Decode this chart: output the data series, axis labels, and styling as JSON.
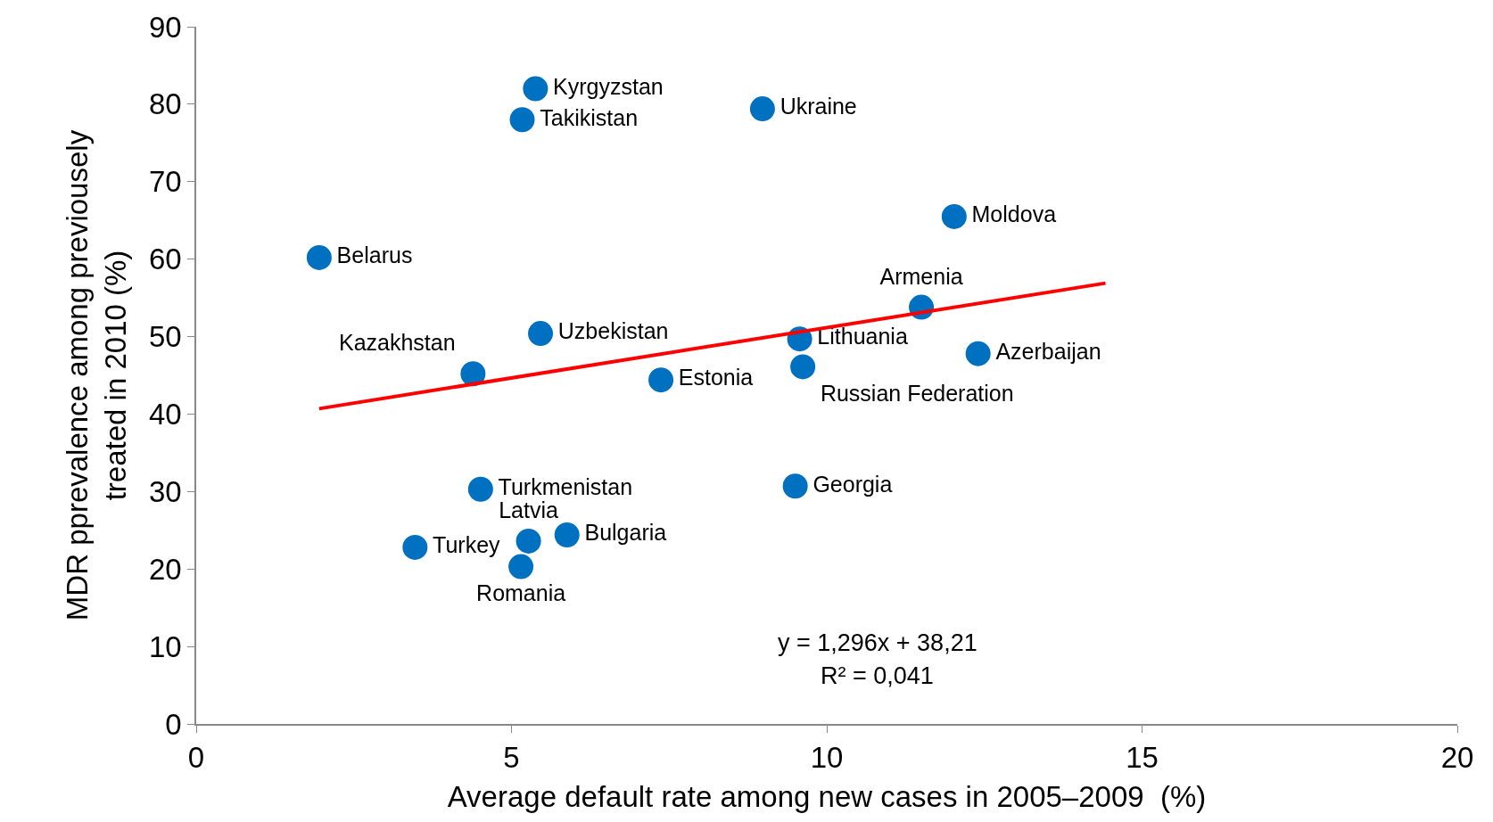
{
  "chart_data": {
    "type": "scatter",
    "xlabel": "Average default rate among new cases in 2005–2009  (%)",
    "ylabel": "MDR pprevalence among previousely treated in 2010 (%)",
    "xlim": [
      0,
      20
    ],
    "xticks": [
      0,
      5,
      10,
      15,
      20
    ],
    "ylim": [
      0,
      90
    ],
    "yticks": [
      0,
      10,
      20,
      30,
      40,
      50,
      60,
      70,
      80,
      90
    ],
    "series": [
      {
        "color": "#0070c0",
        "marker": "circle",
        "x": [
          5.38,
          5.17,
          8.98,
          12.02,
          1.95,
          11.5,
          5.46,
          9.57,
          12.4,
          4.39,
          9.62,
          7.37,
          4.51,
          9.5,
          5.88,
          5.27,
          3.47,
          5.15
        ],
        "values": [
          82.0,
          78.0,
          79.4,
          65.5,
          60.2,
          53.8,
          50.4,
          49.7,
          47.8,
          45.2,
          46.1,
          44.4,
          30.3,
          30.7,
          24.4,
          23.6,
          22.8,
          20.3
        ],
        "value_labels": [
          "Kyrgyzstan",
          "Takikistan",
          "Ukraine",
          "Moldova",
          "Belarus",
          "Armenia",
          "Uzbekistan",
          "Lithuania",
          "Azerbaijan",
          "Kazakhstan",
          "Russian Federation",
          "Estonia",
          "Turkmenistan",
          "Georgia",
          "Bulgaria",
          "Latvia",
          "Turkey",
          "Romania"
        ]
      },
      {
        "type": "line",
        "color": "#ff0000",
        "x": [
          1.95,
          14.42
        ],
        "values": [
          40.7,
          56.9
        ],
        "line_style": "solid",
        "marker": "none"
      }
    ],
    "annotations": [
      "y = 1,296x + 38,21",
      "R² = 0,041"
    ]
  }
}
